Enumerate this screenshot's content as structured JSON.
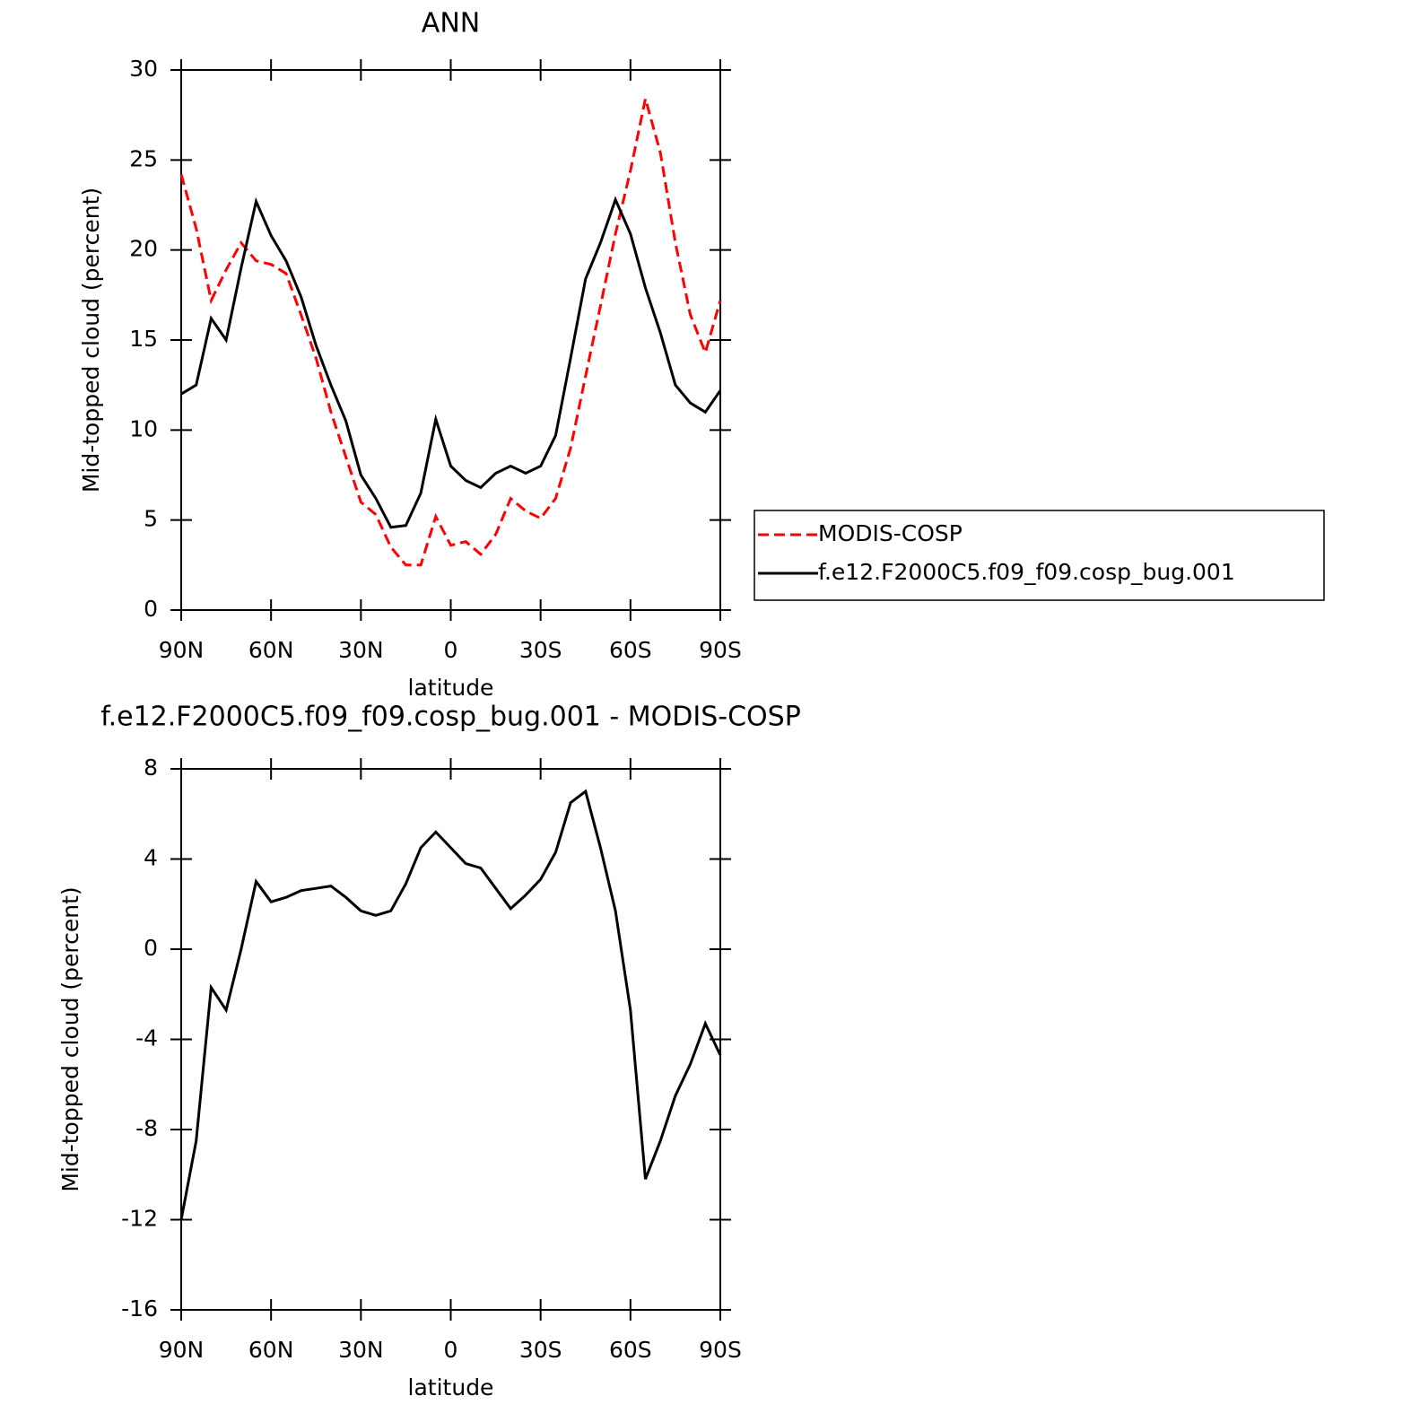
{
  "chart_data": [
    {
      "type": "line",
      "title": "ANN",
      "xlabel": "latitude",
      "ylabel": "Mid-topped cloud (percent)",
      "x": [
        90,
        85,
        80,
        75,
        70,
        65,
        60,
        55,
        50,
        45,
        40,
        35,
        30,
        25,
        20,
        15,
        10,
        5,
        0,
        -5,
        -10,
        -15,
        -20,
        -25,
        -30,
        -35,
        -40,
        -45,
        -50,
        -55,
        -60,
        -65,
        -70,
        -75,
        -80,
        -85,
        -90
      ],
      "series": [
        {
          "name": "MODIS-COSP",
          "color": "#ff0000",
          "dash": "dashed",
          "values": [
            24.2,
            21.2,
            17.2,
            18.9,
            20.4,
            19.4,
            19.2,
            18.7,
            16.4,
            14.0,
            11.0,
            8.5,
            6.0,
            5.3,
            3.5,
            2.5,
            2.5,
            5.2,
            3.6,
            3.8,
            3.1,
            4.2,
            6.2,
            5.5,
            5.1,
            6.2,
            9.0,
            13.0,
            16.9,
            20.9,
            24.4,
            28.4,
            25.4,
            20.4,
            16.4,
            14.3,
            17.2
          ]
        },
        {
          "name": "f.e12.F2000C5.f09_f09.cosp_bug.001",
          "color": "#000000",
          "dash": "solid",
          "values": [
            12.0,
            12.5,
            16.2,
            15.0,
            19.0,
            22.7,
            20.8,
            19.4,
            17.4,
            14.7,
            12.5,
            10.5,
            7.5,
            6.2,
            4.6,
            4.7,
            6.5,
            10.6,
            8.0,
            7.2,
            6.8,
            7.6,
            8.0,
            7.6,
            8.0,
            9.7,
            14.0,
            18.4,
            20.4,
            22.8,
            20.9,
            17.9,
            15.4,
            12.5,
            11.5,
            11.0,
            12.2
          ]
        }
      ],
      "xlim": [
        90,
        -90
      ],
      "ylim": [
        0,
        30
      ],
      "xticks": [
        {
          "value": 90,
          "label": "90N"
        },
        {
          "value": 60,
          "label": "60N"
        },
        {
          "value": 30,
          "label": "30N"
        },
        0,
        {
          "value": -30,
          "label": "30S"
        },
        {
          "value": -60,
          "label": "60S"
        },
        {
          "value": -90,
          "label": "90S"
        }
      ],
      "yticks": [
        0,
        5,
        10,
        15,
        20,
        25,
        30
      ],
      "legend": "right"
    },
    {
      "type": "line",
      "title": "f.e12.F2000C5.f09_f09.cosp_bug.001 - MODIS-COSP",
      "xlabel": "latitude",
      "ylabel": "Mid-topped cloud (percent)",
      "x": [
        90,
        85,
        80,
        75,
        70,
        65,
        60,
        55,
        50,
        45,
        40,
        35,
        30,
        25,
        20,
        15,
        10,
        5,
        0,
        -5,
        -10,
        -15,
        -20,
        -25,
        -30,
        -35,
        -40,
        -45,
        -50,
        -55,
        -60,
        -65,
        -70,
        -75,
        -80,
        -85,
        -90
      ],
      "series": [
        {
          "color": "#000000",
          "dash": "solid",
          "values": [
            -12.0,
            -8.5,
            -1.7,
            -2.7,
            0.0,
            3.0,
            2.1,
            2.3,
            2.6,
            2.7,
            2.8,
            2.3,
            1.7,
            1.5,
            1.7,
            2.9,
            4.5,
            5.2,
            4.5,
            3.8,
            3.6,
            2.7,
            1.8,
            2.4,
            3.1,
            4.3,
            6.5,
            7.0,
            4.5,
            1.7,
            -2.7,
            -10.2,
            -8.5,
            -6.5,
            -5.1,
            -3.3,
            -4.7
          ]
        }
      ],
      "xlim": [
        90,
        -90
      ],
      "ylim": [
        -16,
        8
      ],
      "xticks": [
        {
          "value": 90,
          "label": "90N"
        },
        {
          "value": 60,
          "label": "60N"
        },
        {
          "value": 30,
          "label": "30N"
        },
        0,
        {
          "value": -30,
          "label": "30S"
        },
        {
          "value": -60,
          "label": "60S"
        },
        {
          "value": -90,
          "label": "90S"
        }
      ],
      "yticks": [
        -16,
        -12,
        -8,
        -4,
        0,
        4,
        8
      ]
    }
  ]
}
